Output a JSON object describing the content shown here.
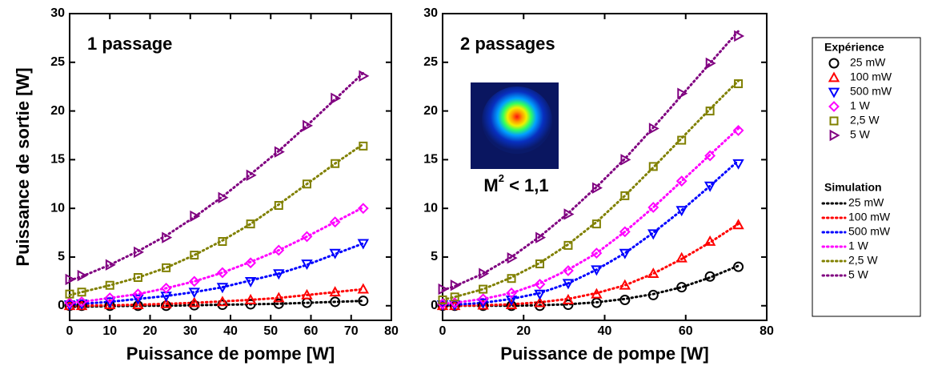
{
  "chart_data": [
    {
      "type": "scatter",
      "title": "1 passage",
      "ylabel": "Puissance de sortie [W]",
      "xlabel": "Puissance de pompe  [W]",
      "xlim": [
        0,
        80
      ],
      "ylim": [
        -1.5,
        30
      ],
      "xticks": [
        0,
        10,
        20,
        30,
        40,
        50,
        60,
        70,
        80
      ],
      "yticks": [
        0,
        5,
        10,
        15,
        20,
        25,
        30
      ],
      "legend": {
        "position": "right",
        "groups": [
          {
            "title": "Expérience",
            "style": "markers"
          },
          {
            "title": "Simulation",
            "style": "line"
          }
        ]
      },
      "x": [
        0,
        3,
        10,
        17,
        24,
        31,
        38,
        45,
        52,
        59,
        66,
        73
      ],
      "series": [
        {
          "name": "25 mW",
          "group": 0,
          "marker": "circle",
          "color": "#000000",
          "values": [
            0,
            0,
            0,
            0,
            0,
            0.05,
            0.1,
            0.15,
            0.2,
            0.3,
            0.4,
            0.5
          ]
        },
        {
          "name": "100 mW",
          "group": 0,
          "marker": "triangle-up",
          "color": "#ff0000",
          "values": [
            0,
            0,
            0.1,
            0.1,
            0.2,
            0.3,
            0.4,
            0.6,
            0.8,
            1.1,
            1.4,
            1.7
          ]
        },
        {
          "name": "500 mW",
          "group": 0,
          "marker": "triangle-down",
          "color": "#0000ff",
          "values": [
            0.1,
            0.2,
            0.4,
            0.7,
            1.0,
            1.4,
            1.9,
            2.5,
            3.3,
            4.3,
            5.4,
            6.4
          ]
        },
        {
          "name": "1 W",
          "group": 0,
          "marker": "diamond",
          "color": "#ff00ff",
          "values": [
            0.3,
            0.4,
            0.8,
            1.2,
            1.8,
            2.5,
            3.4,
            4.4,
            5.7,
            7.1,
            8.6,
            10.0
          ]
        },
        {
          "name": "2,5 W",
          "group": 0,
          "marker": "square",
          "color": "#808000",
          "values": [
            1.2,
            1.4,
            2.1,
            2.9,
            3.9,
            5.2,
            6.6,
            8.4,
            10.3,
            12.5,
            14.6,
            16.4
          ]
        },
        {
          "name": "5 W",
          "group": 0,
          "marker": "triangle-right",
          "color": "#800080",
          "values": [
            2.7,
            3.1,
            4.2,
            5.5,
            7.0,
            9.2,
            11.1,
            13.4,
            15.8,
            18.5,
            21.3,
            23.6
          ]
        },
        {
          "name": "25 mW",
          "group": 1,
          "color": "#000000",
          "values": [
            -0.1,
            -0.1,
            -0.05,
            0,
            0,
            0.05,
            0.1,
            0.15,
            0.2,
            0.3,
            0.4,
            0.5
          ]
        },
        {
          "name": "100 mW",
          "group": 1,
          "color": "#ff0000",
          "values": [
            0,
            0,
            0.05,
            0.1,
            0.2,
            0.3,
            0.45,
            0.6,
            0.8,
            1.1,
            1.4,
            1.7
          ]
        },
        {
          "name": "500 mW",
          "group": 1,
          "color": "#0000ff",
          "values": [
            0.1,
            0.2,
            0.4,
            0.7,
            1.0,
            1.4,
            1.9,
            2.6,
            3.3,
            4.2,
            5.3,
            6.4
          ]
        },
        {
          "name": "1 W",
          "group": 1,
          "color": "#ff00ff",
          "values": [
            0.3,
            0.4,
            0.8,
            1.2,
            1.8,
            2.5,
            3.4,
            4.5,
            5.7,
            7.1,
            8.6,
            10.1
          ]
        },
        {
          "name": "2,5 W",
          "group": 1,
          "color": "#808000",
          "values": [
            1.1,
            1.4,
            2.1,
            2.9,
            3.9,
            5.2,
            6.7,
            8.4,
            10.4,
            12.5,
            14.6,
            16.6
          ]
        },
        {
          "name": "5 W",
          "group": 1,
          "color": "#800080",
          "values": [
            2.6,
            3.0,
            4.2,
            5.6,
            7.2,
            9.1,
            11.2,
            13.5,
            15.9,
            18.5,
            21.2,
            23.9
          ]
        }
      ]
    },
    {
      "type": "scatter",
      "title": "2 passages",
      "xlabel": "Puissance de pompe  [W]",
      "inset_label": {
        "base": "M",
        "sup": "2",
        "text": " < 1,1"
      },
      "xlim": [
        0,
        80
      ],
      "ylim": [
        -1.5,
        30
      ],
      "xticks": [
        0,
        20,
        40,
        60,
        80
      ],
      "yticks": [
        0,
        5,
        10,
        15,
        20,
        25,
        30
      ],
      "x": [
        0,
        3,
        10,
        17,
        24,
        31,
        38,
        45,
        52,
        59,
        66,
        73
      ],
      "series": [
        {
          "name": "25 mW",
          "group": 0,
          "marker": "circle",
          "color": "#000000",
          "values": [
            0,
            0,
            0,
            0,
            0,
            0.1,
            0.3,
            0.6,
            1.1,
            1.9,
            3.0,
            4.0
          ]
        },
        {
          "name": "100 mW",
          "group": 0,
          "marker": "triangle-up",
          "color": "#ff0000",
          "values": [
            0,
            0,
            0.05,
            0.1,
            0.3,
            0.6,
            1.2,
            2.1,
            3.3,
            4.9,
            6.6,
            8.3
          ]
        },
        {
          "name": "500 mW",
          "group": 0,
          "marker": "triangle-down",
          "color": "#0000ff",
          "values": [
            0.1,
            0.1,
            0.3,
            0.6,
            1.2,
            2.3,
            3.7,
            5.4,
            7.4,
            9.8,
            12.3,
            14.6
          ]
        },
        {
          "name": "1 W",
          "group": 0,
          "marker": "diamond",
          "color": "#ff00ff",
          "values": [
            0.2,
            0.3,
            0.7,
            1.3,
            2.2,
            3.6,
            5.4,
            7.6,
            10.1,
            12.8,
            15.4,
            18.0
          ]
        },
        {
          "name": "2,5 W",
          "group": 0,
          "marker": "square",
          "color": "#808000",
          "values": [
            0.6,
            0.9,
            1.7,
            2.8,
            4.3,
            6.2,
            8.4,
            11.3,
            14.3,
            17.0,
            20.0,
            22.8
          ]
        },
        {
          "name": "5 W",
          "group": 0,
          "marker": "triangle-right",
          "color": "#800080",
          "values": [
            1.7,
            2.1,
            3.3,
            4.9,
            7.0,
            9.4,
            12.1,
            15.0,
            18.2,
            21.8,
            24.9,
            27.7
          ]
        },
        {
          "name": "25 mW",
          "group": 1,
          "color": "#000000",
          "values": [
            0,
            0,
            0,
            0,
            0.05,
            0.15,
            0.35,
            0.7,
            1.2,
            1.9,
            2.9,
            4.1
          ]
        },
        {
          "name": "100 mW",
          "group": 1,
          "color": "#ff0000",
          "values": [
            0,
            0,
            0.05,
            0.15,
            0.35,
            0.7,
            1.3,
            2.1,
            3.3,
            4.8,
            6.5,
            8.4
          ]
        },
        {
          "name": "500 mW",
          "group": 1,
          "color": "#0000ff",
          "values": [
            0.05,
            0.1,
            0.3,
            0.7,
            1.3,
            2.3,
            3.7,
            5.4,
            7.5,
            9.8,
            12.3,
            14.9
          ]
        },
        {
          "name": "1 W",
          "group": 1,
          "color": "#ff00ff",
          "values": [
            0.2,
            0.3,
            0.7,
            1.3,
            2.3,
            3.7,
            5.4,
            7.6,
            10.1,
            12.8,
            15.5,
            18.2
          ]
        },
        {
          "name": "2,5 W",
          "group": 1,
          "color": "#808000",
          "values": [
            0.6,
            0.9,
            1.7,
            2.9,
            4.4,
            6.3,
            8.6,
            11.3,
            14.2,
            17.2,
            20.2,
            23.1
          ]
        },
        {
          "name": "5 W",
          "group": 1,
          "color": "#800080",
          "values": [
            1.6,
            2.0,
            3.3,
            5.0,
            7.1,
            9.5,
            12.2,
            15.1,
            18.3,
            21.6,
            24.9,
            28.2
          ]
        }
      ]
    }
  ]
}
